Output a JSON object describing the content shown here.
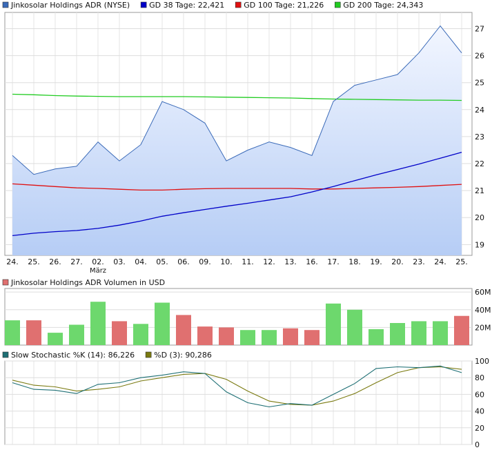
{
  "chart_data": [
    {
      "type": "line",
      "legend_placement": "top",
      "grid": true,
      "legend": [
        {
          "label": "Jinkosolar Holdings ADR (NYSE)",
          "color": "#3a6ab8"
        },
        {
          "label": "GD 38 Tage: 22,421",
          "color": "#0000c8"
        },
        {
          "label": "GD 100 Tage: 21,226",
          "color": "#e01010"
        },
        {
          "label": "GD 200 Tage: 24,343",
          "color": "#22cc22"
        }
      ],
      "x": [
        "24.",
        "25.",
        "26.",
        "27.",
        "02.",
        "03.",
        "04.",
        "05.",
        "06.",
        "09.",
        "10.",
        "11.",
        "12.",
        "13.",
        "16.",
        "17.",
        "18.",
        "19.",
        "20.",
        "23.",
        "24.",
        "25."
      ],
      "x_sublabel": {
        "index": 4,
        "text": "März"
      },
      "ylim": [
        18.6,
        27.6
      ],
      "yticks": [
        19,
        20,
        21,
        22,
        23,
        24,
        25,
        26,
        27
      ],
      "series": [
        {
          "name": "Jinkosolar Holdings ADR (NYSE)",
          "color": "#3a6ab8",
          "fill": true,
          "values": [
            22.3,
            21.6,
            21.8,
            21.9,
            22.8,
            22.1,
            22.7,
            24.3,
            24.0,
            23.5,
            22.1,
            22.5,
            22.8,
            22.6,
            22.3,
            24.3,
            24.9,
            25.1,
            25.3,
            26.1,
            27.1,
            26.1
          ]
        },
        {
          "name": "GD 38 Tage: 22,421",
          "color": "#0000c8",
          "values": [
            19.33,
            19.42,
            19.48,
            19.52,
            19.6,
            19.72,
            19.87,
            20.05,
            20.18,
            20.3,
            20.42,
            20.53,
            20.65,
            20.77,
            20.95,
            21.15,
            21.37,
            21.58,
            21.78,
            21.98,
            22.2,
            22.42
          ]
        },
        {
          "name": "GD 100 Tage: 21,226",
          "color": "#e01010",
          "values": [
            21.25,
            21.2,
            21.15,
            21.1,
            21.08,
            21.05,
            21.02,
            21.02,
            21.05,
            21.07,
            21.08,
            21.08,
            21.08,
            21.08,
            21.06,
            21.06,
            21.08,
            21.1,
            21.12,
            21.15,
            21.19,
            21.23
          ]
        },
        {
          "name": "GD 200 Tage: 24,343",
          "color": "#22cc22",
          "values": [
            24.57,
            24.55,
            24.52,
            24.5,
            24.49,
            24.48,
            24.48,
            24.48,
            24.48,
            24.47,
            24.46,
            24.45,
            24.44,
            24.43,
            24.41,
            24.39,
            24.38,
            24.37,
            24.36,
            24.35,
            24.35,
            24.34
          ]
        }
      ]
    },
    {
      "type": "bar",
      "legend": [
        {
          "label": "Jinkosolar Holdings ADR Volumen in USD",
          "color": "#e07070"
        }
      ],
      "ylim": [
        0,
        64
      ],
      "yticks": [
        "20M",
        "40M",
        "60M"
      ],
      "ytick_values": [
        20,
        40,
        60
      ],
      "unit": "M",
      "values": [
        28,
        28,
        14,
        23,
        49,
        27,
        24,
        48,
        34,
        21,
        20,
        17,
        17,
        19,
        17,
        47,
        40,
        18,
        25,
        27,
        27,
        33
      ],
      "colors": [
        "g",
        "r",
        "g",
        "g",
        "g",
        "r",
        "g",
        "g",
        "r",
        "r",
        "r",
        "g",
        "g",
        "r",
        "r",
        "g",
        "g",
        "g",
        "g",
        "g",
        "g",
        "r"
      ],
      "color_map": {
        "g": "#6dd86d",
        "r": "#e07070"
      }
    },
    {
      "type": "line",
      "legend": [
        {
          "label": "Slow Stochastic %K (14): 86,226",
          "color": "#1d6f74"
        },
        {
          "label": "%D (3): 90,286",
          "color": "#7a7a10"
        }
      ],
      "ylim": [
        0,
        100
      ],
      "yticks": [
        0,
        20,
        40,
        60,
        80,
        100
      ],
      "series": [
        {
          "name": "Slow Stochastic %K (14): 86,226",
          "color": "#1d6f74",
          "values": [
            74,
            66,
            65,
            61,
            72,
            74,
            80,
            83,
            87,
            85,
            63,
            50,
            45,
            49,
            47,
            60,
            73,
            91,
            93,
            92,
            94,
            86
          ]
        },
        {
          "name": "%D (3): 90,286",
          "color": "#7a7a10",
          "values": [
            77,
            71,
            69,
            64,
            66,
            69,
            76,
            80,
            84,
            85,
            78,
            64,
            52,
            48,
            47,
            52,
            61,
            74,
            86,
            92,
            93,
            90
          ]
        }
      ]
    }
  ]
}
